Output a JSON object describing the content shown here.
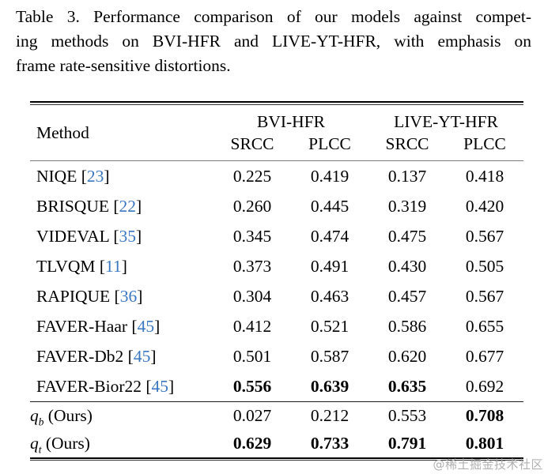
{
  "caption": {
    "lines": [
      "Table 3. Performance comparison of our models against compet-",
      "ing methods on BVI-HFR and LIVE-YT-HFR, with emphasis on",
      "frame rate-sensitive distortions."
    ]
  },
  "table": {
    "method_header": "Method",
    "groups": [
      "BVI-HFR",
      "LIVE-YT-HFR"
    ],
    "sub_headers": [
      "SRCC",
      "PLCC",
      "SRCC",
      "PLCC"
    ],
    "rows": [
      {
        "method": "NIQE",
        "cite": "23",
        "values": [
          "0.225",
          "0.419",
          "0.137",
          "0.418"
        ],
        "bold": [
          0,
          0,
          0,
          0
        ]
      },
      {
        "method": "BRISQUE",
        "cite": "22",
        "values": [
          "0.260",
          "0.445",
          "0.319",
          "0.420"
        ],
        "bold": [
          0,
          0,
          0,
          0
        ]
      },
      {
        "method": "VIDEVAL",
        "cite": "35",
        "values": [
          "0.345",
          "0.474",
          "0.475",
          "0.567"
        ],
        "bold": [
          0,
          0,
          0,
          0
        ]
      },
      {
        "method": "TLVQM",
        "cite": "11",
        "values": [
          "0.373",
          "0.491",
          "0.430",
          "0.505"
        ],
        "bold": [
          0,
          0,
          0,
          0
        ]
      },
      {
        "method": "RAPIQUE",
        "cite": "36",
        "values": [
          "0.304",
          "0.463",
          "0.457",
          "0.567"
        ],
        "bold": [
          0,
          0,
          0,
          0
        ]
      },
      {
        "method": "FAVER-Haar",
        "cite": "45",
        "values": [
          "0.412",
          "0.521",
          "0.586",
          "0.655"
        ],
        "bold": [
          0,
          0,
          0,
          0
        ]
      },
      {
        "method": "FAVER-Db2",
        "cite": "45",
        "values": [
          "0.501",
          "0.587",
          "0.620",
          "0.677"
        ],
        "bold": [
          0,
          0,
          0,
          0
        ]
      },
      {
        "method": "FAVER-Bior22",
        "cite": "45",
        "values": [
          "0.556",
          "0.639",
          "0.635",
          "0.692"
        ],
        "bold": [
          1,
          1,
          1,
          0
        ]
      },
      {
        "method_base": "q",
        "method_sub": "b",
        "method_suffix": "(Ours)",
        "values": [
          "0.027",
          "0.212",
          "0.553",
          "0.708"
        ],
        "bold": [
          0,
          0,
          0,
          1
        ],
        "group_start": true
      },
      {
        "method_base": "q",
        "method_sub": "t",
        "method_suffix": "(Ours)",
        "values": [
          "0.629",
          "0.733",
          "0.791",
          "0.801"
        ],
        "bold": [
          1,
          1,
          1,
          1
        ]
      }
    ]
  },
  "watermark": {
    "text": "@稀土掘金技术社区"
  },
  "colors": {
    "citation_blue": "#3a77c2",
    "text": "#000000",
    "rule": "#000000",
    "watermark_gray": "#b0b0b0"
  }
}
